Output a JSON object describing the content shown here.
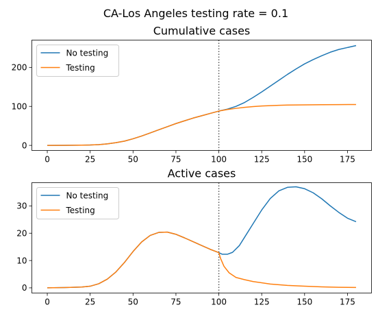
{
  "suptitle": "CA-Los Angeles testing rate = 0.1",
  "colors": {
    "no_testing": "#1f77b4",
    "testing": "#ff7f0e",
    "marker_line": "#555555"
  },
  "chart_data": [
    {
      "type": "line",
      "title": "Cumulative cases",
      "xlabel": "",
      "ylabel": "",
      "xlim": [
        -9,
        189
      ],
      "ylim": [
        -13,
        270
      ],
      "xticks": [
        0,
        25,
        50,
        75,
        100,
        125,
        150,
        175
      ],
      "yticks": [
        0,
        100,
        200
      ],
      "vline": 100,
      "legend_position": "upper-left",
      "series": [
        {
          "name": "No testing",
          "color": "#1f77b4",
          "x": [
            0,
            10,
            20,
            25,
            30,
            35,
            40,
            45,
            50,
            55,
            60,
            65,
            70,
            75,
            80,
            85,
            90,
            95,
            100,
            105,
            110,
            115,
            120,
            125,
            130,
            135,
            140,
            145,
            150,
            155,
            160,
            165,
            170,
            175,
            180
          ],
          "y": [
            0,
            0.2,
            0.6,
            1,
            2,
            4,
            7,
            11,
            17,
            24,
            32,
            40,
            48,
            56,
            63,
            70,
            76,
            82,
            88,
            93,
            100,
            110,
            123,
            137,
            152,
            167,
            182,
            196,
            209,
            220,
            230,
            239,
            246,
            251,
            256
          ]
        },
        {
          "name": "Testing",
          "color": "#ff7f0e",
          "x": [
            0,
            10,
            20,
            25,
            30,
            35,
            40,
            45,
            50,
            55,
            60,
            65,
            70,
            75,
            80,
            85,
            90,
            95,
            100,
            105,
            110,
            115,
            120,
            125,
            130,
            135,
            140,
            150,
            160,
            170,
            180
          ],
          "y": [
            0,
            0.2,
            0.6,
            1,
            2,
            4,
            7,
            11,
            17,
            24,
            32,
            40,
            48,
            56,
            63,
            70,
            76,
            82,
            88,
            92,
            95,
            97.5,
            99.5,
            101,
            102,
            102.8,
            103.4,
            104,
            104.4,
            104.6,
            104.8
          ]
        }
      ]
    },
    {
      "type": "line",
      "title": "Active cases",
      "xlabel": "",
      "ylabel": "",
      "xlim": [
        -9,
        189
      ],
      "ylim": [
        -1.9,
        38.5
      ],
      "xticks": [
        0,
        25,
        50,
        75,
        100,
        125,
        150,
        175
      ],
      "yticks": [
        0,
        10,
        20,
        30
      ],
      "vline": 100,
      "legend_position": "upper-left",
      "series": [
        {
          "name": "No testing",
          "color": "#1f77b4",
          "x": [
            0,
            10,
            20,
            25,
            30,
            35,
            40,
            45,
            50,
            55,
            60,
            65,
            70,
            75,
            80,
            85,
            90,
            95,
            100,
            102,
            105,
            108,
            112,
            115,
            120,
            125,
            130,
            135,
            140,
            145,
            150,
            155,
            160,
            165,
            170,
            175,
            180
          ],
          "y": [
            0,
            0.1,
            0.3,
            0.6,
            1.5,
            3.2,
            5.8,
            9.3,
            13.3,
            16.8,
            19.2,
            20.3,
            20.4,
            19.6,
            18.3,
            16.9,
            15.5,
            14.1,
            12.9,
            12.3,
            12.3,
            13.0,
            15.5,
            18.5,
            23.5,
            28.5,
            32.7,
            35.5,
            36.8,
            37.0,
            36.3,
            34.8,
            32.6,
            30.0,
            27.6,
            25.5,
            24.2
          ]
        },
        {
          "name": "Testing",
          "color": "#ff7f0e",
          "x": [
            0,
            10,
            20,
            25,
            30,
            35,
            40,
            45,
            50,
            55,
            60,
            65,
            70,
            75,
            80,
            85,
            90,
            95,
            100,
            101,
            103,
            106,
            110,
            115,
            120,
            130,
            140,
            150,
            160,
            170,
            180
          ],
          "y": [
            0,
            0.1,
            0.3,
            0.6,
            1.5,
            3.2,
            5.8,
            9.3,
            13.3,
            16.8,
            19.2,
            20.3,
            20.4,
            19.6,
            18.3,
            16.9,
            15.5,
            14.1,
            12.9,
            10.8,
            7.9,
            5.5,
            3.8,
            3.0,
            2.3,
            1.4,
            0.9,
            0.6,
            0.35,
            0.2,
            0.15
          ]
        }
      ]
    }
  ]
}
